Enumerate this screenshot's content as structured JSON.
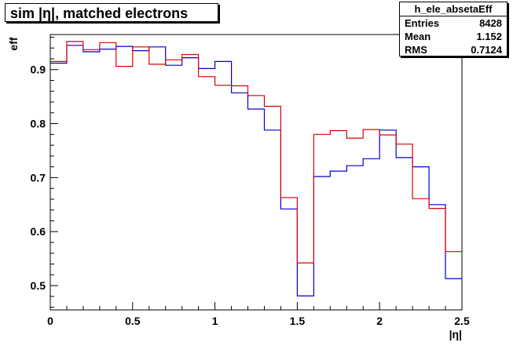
{
  "title": "sim |η|, matched electrons",
  "stats": {
    "name": "h_ele_absetaEff",
    "rows": [
      {
        "label": "Entries",
        "value": "8428"
      },
      {
        "label": "Mean",
        "value": "1.152"
      },
      {
        "label": "RMS",
        "value": "0.7124"
      }
    ]
  },
  "chart_data": {
    "type": "line",
    "title": "sim |η|, matched electrons",
    "xlabel": "|η|",
    "ylabel": "eff",
    "xlim": [
      0,
      2.5
    ],
    "ylim": [
      0.455,
      0.965
    ],
    "xticks": [
      "0",
      "0.5",
      "1",
      "1.5",
      "2",
      "2.5"
    ],
    "yticks": [
      "0.5",
      "0.6",
      "0.7",
      "0.8",
      "0.9"
    ],
    "grid": false,
    "bin_edges": [
      0,
      0.1,
      0.2,
      0.3,
      0.4,
      0.5,
      0.6,
      0.7,
      0.8,
      0.9,
      1.0,
      1.1,
      1.2,
      1.3,
      1.4,
      1.5,
      1.6,
      1.7,
      1.8,
      1.9,
      2.0,
      2.1,
      2.2,
      2.3,
      2.4,
      2.5
    ],
    "series": [
      {
        "color": "#0000cc",
        "values": [
          0.912,
          0.945,
          0.933,
          0.938,
          0.943,
          0.935,
          0.942,
          0.908,
          0.922,
          0.902,
          0.915,
          0.857,
          0.827,
          0.788,
          0.642,
          0.481,
          0.702,
          0.712,
          0.722,
          0.735,
          0.788,
          0.737,
          0.72,
          0.65,
          0.513
        ]
      },
      {
        "color": "#dd0000",
        "values": [
          0.915,
          0.952,
          0.937,
          0.95,
          0.906,
          0.942,
          0.91,
          0.918,
          0.928,
          0.887,
          0.871,
          0.87,
          0.852,
          0.832,
          0.663,
          0.542,
          0.78,
          0.787,
          0.773,
          0.789,
          0.779,
          0.762,
          0.661,
          0.643,
          0.563
        ]
      }
    ]
  }
}
